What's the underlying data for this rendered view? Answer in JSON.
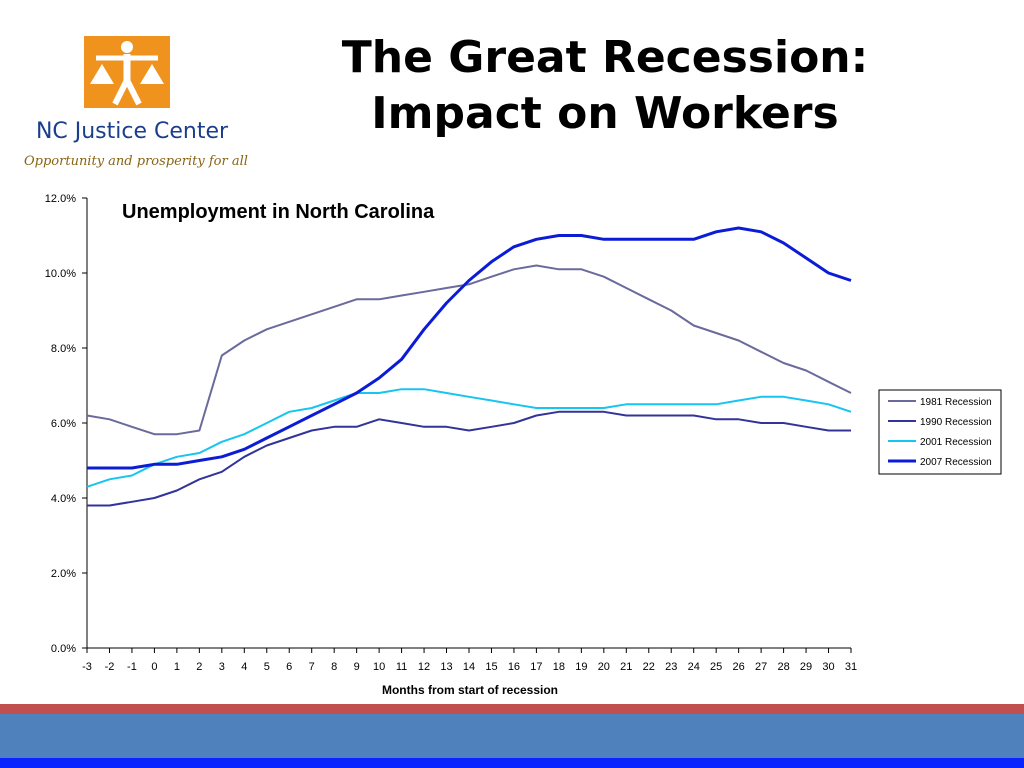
{
  "header": {
    "title_line1": "The Great Recession:",
    "title_line2": "Impact on Workers"
  },
  "logo": {
    "name": "NC Justice Center",
    "tagline": "Opportunity and prosperity for all",
    "accent_color": "#f0931e"
  },
  "chart_data": {
    "type": "line",
    "title": "Unemployment in North Carolina",
    "xlabel": "Months from start of recession",
    "ylabel": "",
    "x": [
      -3,
      -2,
      -1,
      0,
      1,
      2,
      3,
      4,
      5,
      6,
      7,
      8,
      9,
      10,
      11,
      12,
      13,
      14,
      15,
      16,
      17,
      18,
      19,
      20,
      21,
      22,
      23,
      24,
      25,
      26,
      27,
      28,
      29,
      30,
      31
    ],
    "ylim": [
      0,
      12
    ],
    "yticks": [
      "0.0%",
      "2.0%",
      "4.0%",
      "6.0%",
      "8.0%",
      "10.0%",
      "12.0%"
    ],
    "grid": false,
    "legend_position": "right",
    "series": [
      {
        "name": "1981 Recession",
        "color": "#6a6a9c",
        "width": 2,
        "values": [
          6.2,
          6.1,
          5.9,
          5.7,
          5.7,
          5.8,
          7.8,
          8.2,
          8.5,
          8.7,
          8.9,
          9.1,
          9.3,
          9.3,
          9.4,
          9.5,
          9.6,
          9.7,
          9.9,
          10.1,
          10.2,
          10.1,
          10.1,
          9.9,
          9.6,
          9.3,
          9.0,
          8.6,
          8.4,
          8.2,
          7.9,
          7.6,
          7.4,
          7.1,
          6.8
        ]
      },
      {
        "name": "1990 Recession",
        "color": "#333399",
        "width": 2,
        "values": [
          3.8,
          3.8,
          3.9,
          4.0,
          4.2,
          4.5,
          4.7,
          5.1,
          5.4,
          5.6,
          5.8,
          5.9,
          5.9,
          6.1,
          6.0,
          5.9,
          5.9,
          5.8,
          5.9,
          6.0,
          6.2,
          6.3,
          6.3,
          6.3,
          6.2,
          6.2,
          6.2,
          6.2,
          6.1,
          6.1,
          6.0,
          6.0,
          5.9,
          5.8,
          5.8
        ]
      },
      {
        "name": "2001 Recession",
        "color": "#18c4f0",
        "width": 2,
        "values": [
          4.3,
          4.5,
          4.6,
          4.9,
          5.1,
          5.2,
          5.5,
          5.7,
          6.0,
          6.3,
          6.4,
          6.6,
          6.8,
          6.8,
          6.9,
          6.9,
          6.8,
          6.7,
          6.6,
          6.5,
          6.4,
          6.4,
          6.4,
          6.4,
          6.5,
          6.5,
          6.5,
          6.5,
          6.5,
          6.6,
          6.7,
          6.7,
          6.6,
          6.5,
          6.3
        ]
      },
      {
        "name": "2007 Recession",
        "color": "#0c1cd6",
        "width": 3,
        "values": [
          4.8,
          4.8,
          4.8,
          4.9,
          4.9,
          5.0,
          5.1,
          5.3,
          5.6,
          5.9,
          6.2,
          6.5,
          6.8,
          7.2,
          7.7,
          8.5,
          9.2,
          9.8,
          10.3,
          10.7,
          10.9,
          11.0,
          11.0,
          10.9,
          10.9,
          10.9,
          10.9,
          10.9,
          11.1,
          11.2,
          11.1,
          10.8,
          10.4,
          10.0,
          9.8
        ]
      }
    ]
  }
}
